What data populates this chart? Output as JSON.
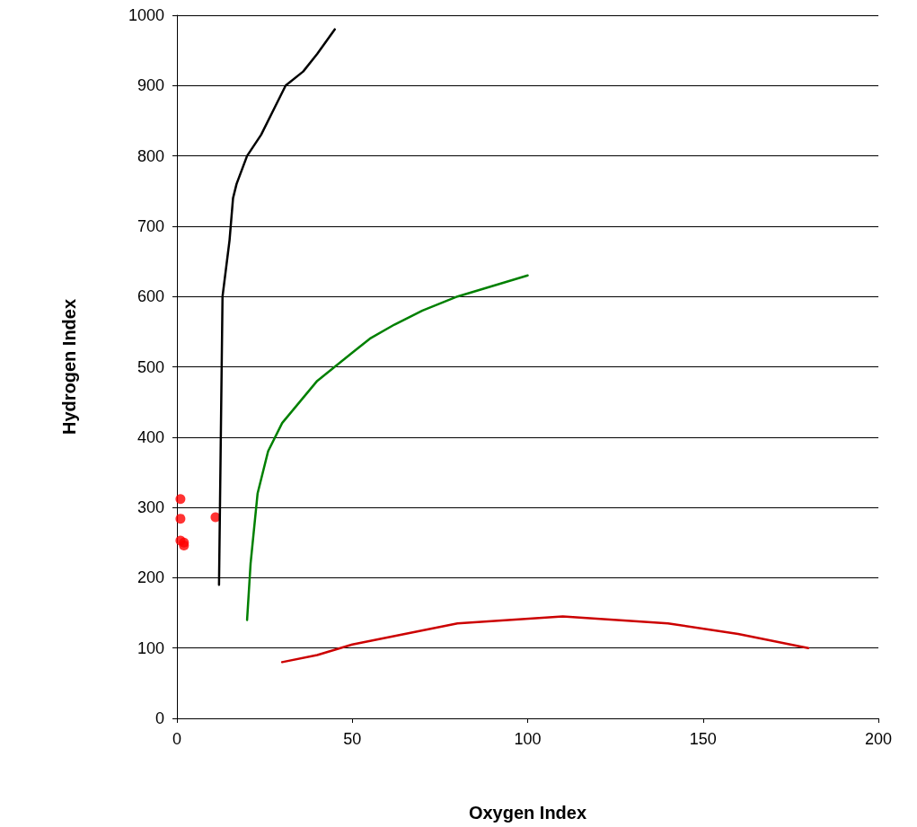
{
  "chart_data": {
    "type": "line",
    "xlabel": "Oxygen Index",
    "ylabel": "Hydrogen Index",
    "xlim": [
      0,
      200
    ],
    "xticks": [
      0,
      50,
      100,
      150,
      200
    ],
    "ylim": [
      0,
      1000
    ],
    "yticks": [
      0,
      100,
      200,
      300,
      400,
      500,
      600,
      700,
      800,
      900,
      1000
    ],
    "grid": "y",
    "marker": "none",
    "line_style": "solid",
    "series": [
      {
        "color": "#000000",
        "x": [
          12,
          13,
          15,
          16,
          17,
          20,
          24,
          28,
          31,
          36,
          40,
          45
        ],
        "values": [
          190,
          600,
          680,
          740,
          760,
          800,
          830,
          870,
          900,
          920,
          945,
          980
        ]
      },
      {
        "color": "#008000",
        "x": [
          20,
          21,
          23,
          26,
          30,
          35,
          40,
          45,
          50,
          55,
          62,
          70,
          80,
          90,
          100
        ],
        "values": [
          140,
          220,
          320,
          380,
          420,
          450,
          480,
          500,
          520,
          540,
          560,
          580,
          600,
          615,
          630
        ]
      },
      {
        "color": "#cc0000",
        "x": [
          30,
          40,
          50,
          65,
          80,
          110,
          140,
          160,
          180
        ],
        "values": [
          80,
          90,
          105,
          120,
          135,
          145,
          135,
          120,
          100
        ]
      },
      {
        "type": "scatter",
        "marker": "circle",
        "color": "#ff0000",
        "x": [
          1,
          1,
          1,
          2,
          2,
          11
        ],
        "values": [
          312,
          284,
          253,
          250,
          246,
          286
        ]
      }
    ]
  }
}
